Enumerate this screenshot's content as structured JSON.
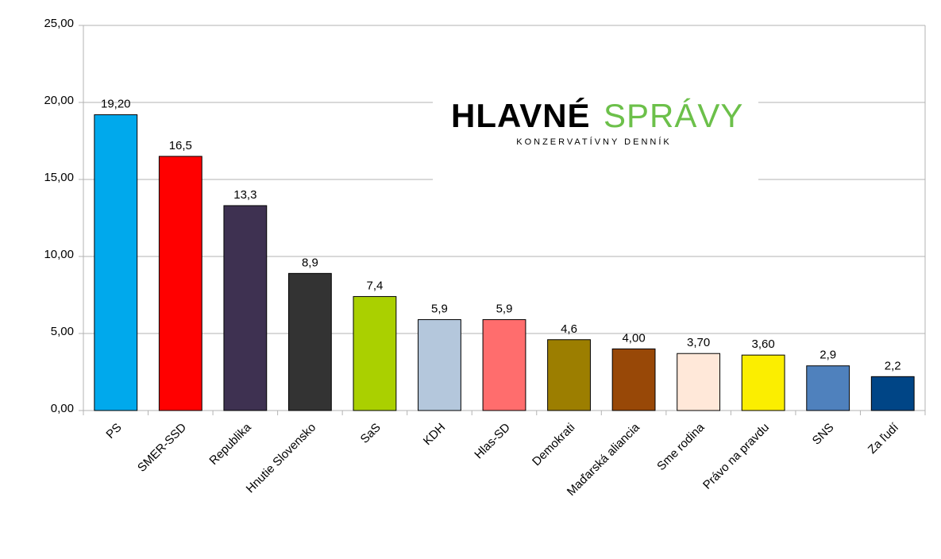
{
  "chart_data": {
    "type": "bar",
    "categories": [
      "PS",
      "SMER-SSD",
      "Republika",
      "Hnutie Slovensko",
      "SaS",
      "KDH",
      "Hlas-SD",
      "Demokrati",
      "Maďarská aliancia",
      "Sme rodina",
      "Právo na pravdu",
      "SNS",
      "Za ľudí"
    ],
    "values": [
      19.2,
      16.5,
      13.3,
      8.9,
      7.4,
      5.9,
      5.9,
      4.6,
      4.0,
      3.7,
      3.6,
      2.9,
      2.2
    ],
    "value_labels": [
      "19,20",
      "16,5",
      "13,3",
      "8,9",
      "7,4",
      "5,9",
      "5,9",
      "4,6",
      "4,00",
      "3,70",
      "3,60",
      "2,9",
      "2,2"
    ],
    "colors": [
      "#00a9ec",
      "#ff0000",
      "#3e3151",
      "#333333",
      "#aad000",
      "#b4c7dc",
      "#ff6d6d",
      "#9c7e00",
      "#984807",
      "#ffe8d9",
      "#fbee00",
      "#4f81bd",
      "#004586"
    ],
    "ylim": [
      0,
      25
    ],
    "yticks": [
      {
        "value": 0,
        "label": "0,00"
      },
      {
        "value": 5,
        "label": "5,00"
      },
      {
        "value": 10,
        "label": "10,00"
      },
      {
        "value": 15,
        "label": "15,00"
      },
      {
        "value": 20,
        "label": "20,00"
      },
      {
        "value": 25,
        "label": "25,00"
      }
    ],
    "grid": true,
    "annotations": [
      "HLAVNÉ",
      "SPRÁVY",
      "KONZERVATÍVNY DENNÍK"
    ]
  }
}
